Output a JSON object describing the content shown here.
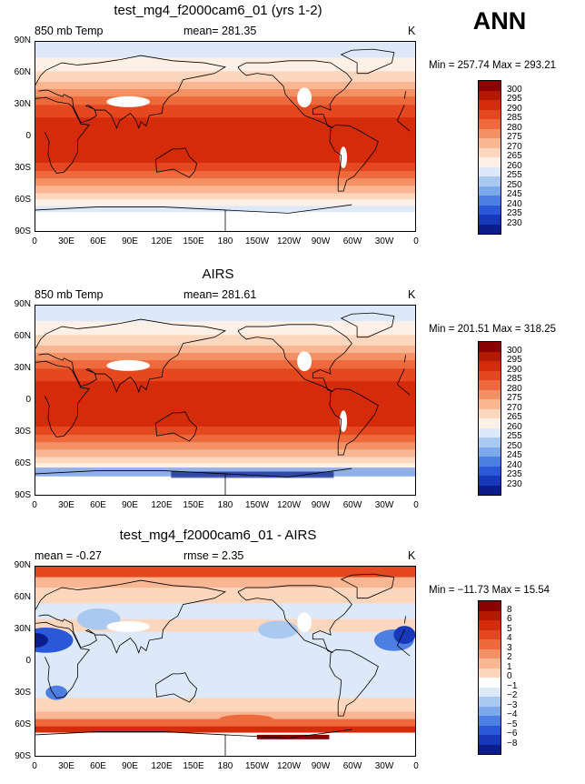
{
  "season": "ANN",
  "panels": [
    {
      "title": "test_mg4_f2000cam6_01 (yrs 1-2)",
      "left_label": "850 mb Temp",
      "center_label": "mean= 281.35",
      "right_label": "K",
      "minmax": "Min = 257.74 Max = 293.21",
      "legend": {
        "labels": [
          "300",
          "295",
          "290",
          "285",
          "280",
          "275",
          "270",
          "265",
          "260",
          "255",
          "250",
          "245",
          "240",
          "235",
          "230"
        ],
        "colors": [
          "#8b0000",
          "#b51800",
          "#d42b0b",
          "#e5481e",
          "#ee6a3c",
          "#f49164",
          "#f9b692",
          "#fcd6bd",
          "#fdf0e6",
          "#dde9f8",
          "#a9c9f1",
          "#7ba9eb",
          "#4d7fe2",
          "#2b58d8",
          "#1738b8",
          "#0a1d8a"
        ],
        "kind": "abs"
      }
    },
    {
      "title": "AIRS",
      "left_label": "850 mb Temp",
      "center_label": "mean= 281.61",
      "right_label": "K",
      "minmax": "Min = 201.51 Max = 318.25",
      "legend": {
        "labels": [
          "300",
          "295",
          "290",
          "285",
          "280",
          "275",
          "270",
          "265",
          "260",
          "255",
          "250",
          "245",
          "240",
          "235",
          "230"
        ],
        "colors": [
          "#8b0000",
          "#b51800",
          "#d42b0b",
          "#e5481e",
          "#ee6a3c",
          "#f49164",
          "#f9b692",
          "#fcd6bd",
          "#fdf0e6",
          "#dde9f8",
          "#a9c9f1",
          "#7ba9eb",
          "#4d7fe2",
          "#2b58d8",
          "#1738b8",
          "#0a1d8a"
        ],
        "kind": "abs"
      }
    },
    {
      "title": "test_mg4_f2000cam6_01 - AIRS",
      "left_label": "mean =  -0.27",
      "center_label": "rmse =    2.35",
      "right_label": "K",
      "minmax": "Min = −11.73 Max =  15.54",
      "legend": {
        "labels": [
          "8",
          "6",
          "5",
          "4",
          "3",
          "2",
          "1",
          "0",
          "−1",
          "−2",
          "−3",
          "−4",
          "−5",
          "−6",
          "−8"
        ],
        "colors": [
          "#8b0000",
          "#b51800",
          "#d42b0b",
          "#e5481e",
          "#ee6a3c",
          "#f49164",
          "#f9b692",
          "#fcd6bd",
          "#ffffff",
          "#dde9f8",
          "#a9c9f1",
          "#7ba9eb",
          "#4d7fe2",
          "#2b58d8",
          "#1738b8",
          "#0a1d8a"
        ],
        "kind": "diff"
      }
    }
  ],
  "lat_ticks": [
    "90N",
    "60N",
    "30N",
    "0",
    "30S",
    "60S",
    "90S"
  ],
  "lon_ticks": [
    "0",
    "30E",
    "60E",
    "90E",
    "120E",
    "150E",
    "180",
    "150W",
    "120W",
    "90W",
    "60W",
    "30W",
    "0"
  ]
}
